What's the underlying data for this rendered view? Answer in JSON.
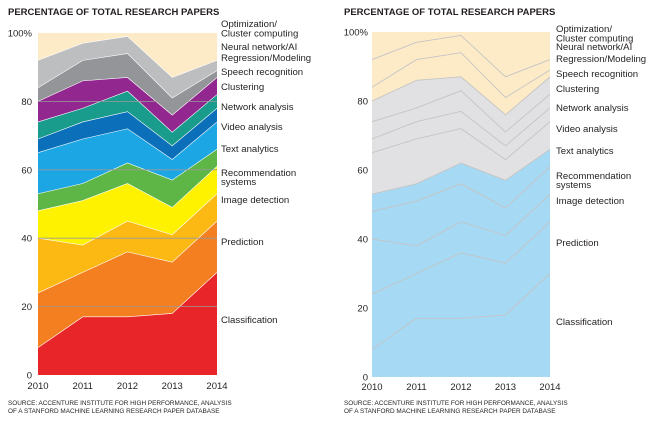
{
  "chart_data": [
    {
      "type": "area",
      "stacked": true,
      "title": "PERCENTAGE OF TOTAL RESEARCH PAPERS",
      "x": [
        "2010",
        "2011",
        "2012",
        "2013",
        "2014"
      ],
      "ylim": [
        0,
        100
      ],
      "yticks": [
        "0",
        "20",
        "40",
        "60",
        "80",
        "100%"
      ],
      "grid": true,
      "legend": "right, labels beside each band",
      "series": [
        {
          "name": "Classification",
          "color": "#e8262a",
          "values": [
            8,
            17,
            17,
            18,
            30
          ]
        },
        {
          "name": "Prediction",
          "color": "#f47f20",
          "values": [
            16,
            13,
            19,
            15,
            15
          ]
        },
        {
          "name": "Image detection",
          "color": "#fdb913",
          "values": [
            16,
            8,
            9,
            8,
            8
          ]
        },
        {
          "name": "Recommendation systems",
          "color": "#fff200",
          "values": [
            8,
            13,
            11,
            8,
            8
          ]
        },
        {
          "name": "Text analytics",
          "color": "#5db646",
          "values": [
            5,
            5,
            6,
            8,
            5
          ]
        },
        {
          "name": "Video analysis",
          "color": "#1ca6e4",
          "values": [
            12,
            13,
            10,
            6,
            8
          ]
        },
        {
          "name": "Network analysis",
          "color": "#0b6fba",
          "values": [
            4,
            5,
            5,
            4,
            4
          ]
        },
        {
          "name": "Clustering",
          "color": "#1a9c8c",
          "values": [
            5,
            4,
            6,
            4,
            4
          ]
        },
        {
          "name": "Speech recognition",
          "color": "#92278f",
          "values": [
            6,
            8,
            4,
            5,
            5
          ]
        },
        {
          "name": "Regression/Modeling",
          "color": "#939598",
          "values": [
            4,
            6,
            7,
            5,
            2
          ]
        },
        {
          "name": "Neural network/AI",
          "color": "#bcbec0",
          "values": [
            8,
            5,
            5,
            6,
            3
          ]
        },
        {
          "name": "Optimization/ Cluster computing",
          "color": "#fdebc8",
          "values": [
            8,
            3,
            1,
            13,
            8
          ]
        }
      ]
    },
    {
      "type": "area",
      "stacked": true,
      "title": "PERCENTAGE OF TOTAL RESEARCH PAPERS",
      "x": [
        "2010",
        "2011",
        "2012",
        "2013",
        "2014"
      ],
      "ylim": [
        0,
        100
      ],
      "yticks": [
        "0",
        "20",
        "40",
        "60",
        "80",
        "100%"
      ],
      "grid": false,
      "legend": "right, labels beside each band",
      "groups": [
        {
          "color": "#a6d9f4",
          "members": 5
        },
        {
          "color": "#e1e1e3",
          "members": 4
        },
        {
          "color": "#fdebc8",
          "members": 3
        }
      ],
      "series": [
        {
          "name": "Classification",
          "values": [
            8,
            17,
            17,
            18,
            30
          ]
        },
        {
          "name": "Prediction",
          "values": [
            16,
            13,
            19,
            15,
            15
          ]
        },
        {
          "name": "Image detection",
          "values": [
            16,
            8,
            9,
            8,
            8
          ]
        },
        {
          "name": "Recommendation systems",
          "values": [
            8,
            13,
            11,
            8,
            8
          ]
        },
        {
          "name": "Text analytics",
          "values": [
            5,
            5,
            6,
            8,
            5
          ]
        },
        {
          "name": "Video analysis",
          "values": [
            12,
            13,
            10,
            6,
            8
          ]
        },
        {
          "name": "Network analysis",
          "values": [
            4,
            5,
            5,
            4,
            4
          ]
        },
        {
          "name": "Clustering",
          "values": [
            5,
            4,
            6,
            4,
            4
          ]
        },
        {
          "name": "Speech recognition",
          "values": [
            6,
            8,
            4,
            5,
            5
          ]
        },
        {
          "name": "Regression/Modeling",
          "values": [
            4,
            6,
            7,
            5,
            2
          ]
        },
        {
          "name": "Neural network/AI",
          "values": [
            8,
            5,
            5,
            6,
            3
          ]
        },
        {
          "name": "Optimization/ Cluster computing",
          "values": [
            8,
            3,
            1,
            13,
            8
          ]
        }
      ]
    }
  ],
  "source_note": [
    "SOURCE: ACCENTURE INSTITUTE FOR HIGH PERFORMANCE, ANALYSIS",
    "OF A STANFORD MACHINE LEARNING RESEARCH PAPER DATABASE"
  ],
  "colors": {
    "text": "#231f20",
    "grid": "#9a9a9a",
    "outline": "#ffffff",
    "outline_alt": "#c4c4c4"
  }
}
